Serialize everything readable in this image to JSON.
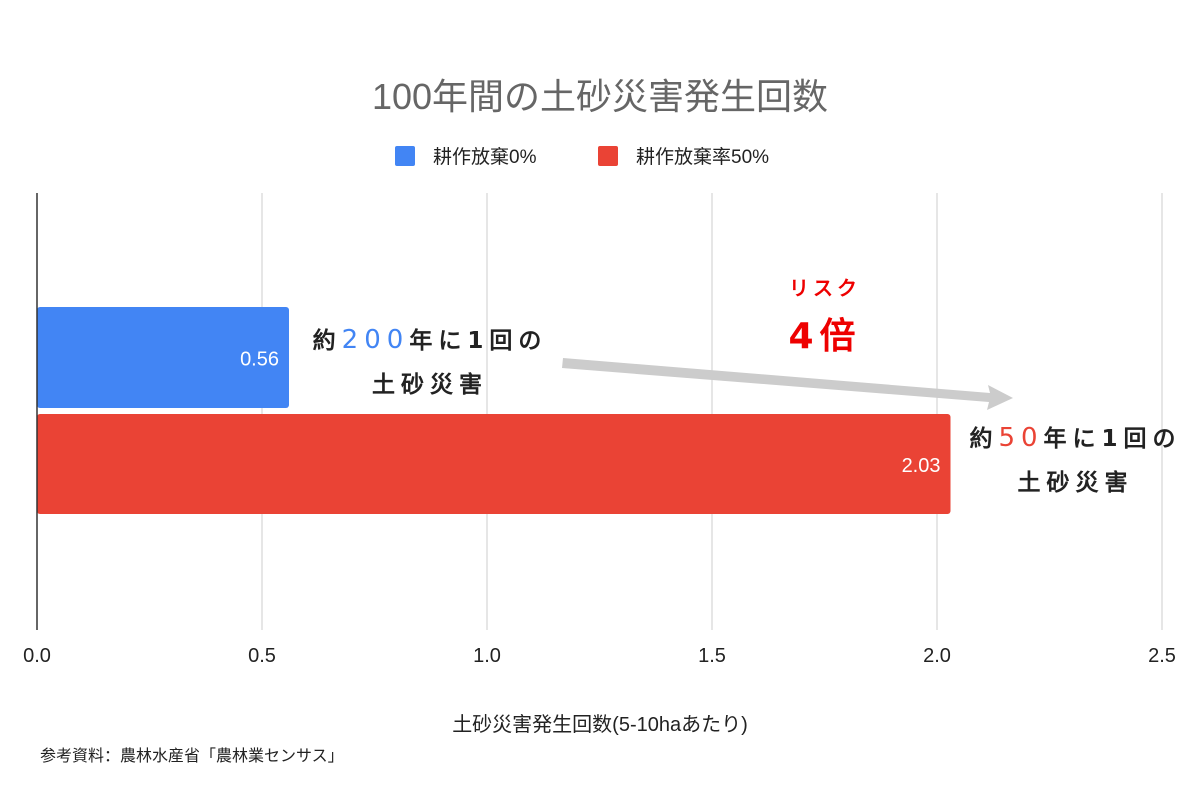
{
  "chart_data": {
    "type": "bar",
    "orientation": "horizontal",
    "title": "100年間の土砂災害発生回数",
    "xlabel": "土砂災害発生回数(5-10haあたり)",
    "xlim": [
      0,
      2.5
    ],
    "xticks": [
      "0.0",
      "0.5",
      "1.0",
      "1.5",
      "2.0",
      "2.5"
    ],
    "grid": true,
    "legend_position": "top",
    "series": [
      {
        "name": "耕作放棄0%",
        "value": 0.56,
        "label": "0.56",
        "color": "#4285f4"
      },
      {
        "name": "耕作放棄率50%",
        "value": 2.03,
        "label": "2.03",
        "color": "#ea4335"
      }
    ]
  },
  "annotations": {
    "blue": {
      "pre": "約",
      "num": "200",
      "post": "年に1回の",
      "line2": "土砂災害"
    },
    "red": {
      "pre": "約",
      "num": "50",
      "post": "年に1回の",
      "line2": "土砂災害"
    },
    "risk_line1": "リスク",
    "risk_line2": "4倍"
  },
  "source": "参考資料：農林水産省「農林業センサス」"
}
